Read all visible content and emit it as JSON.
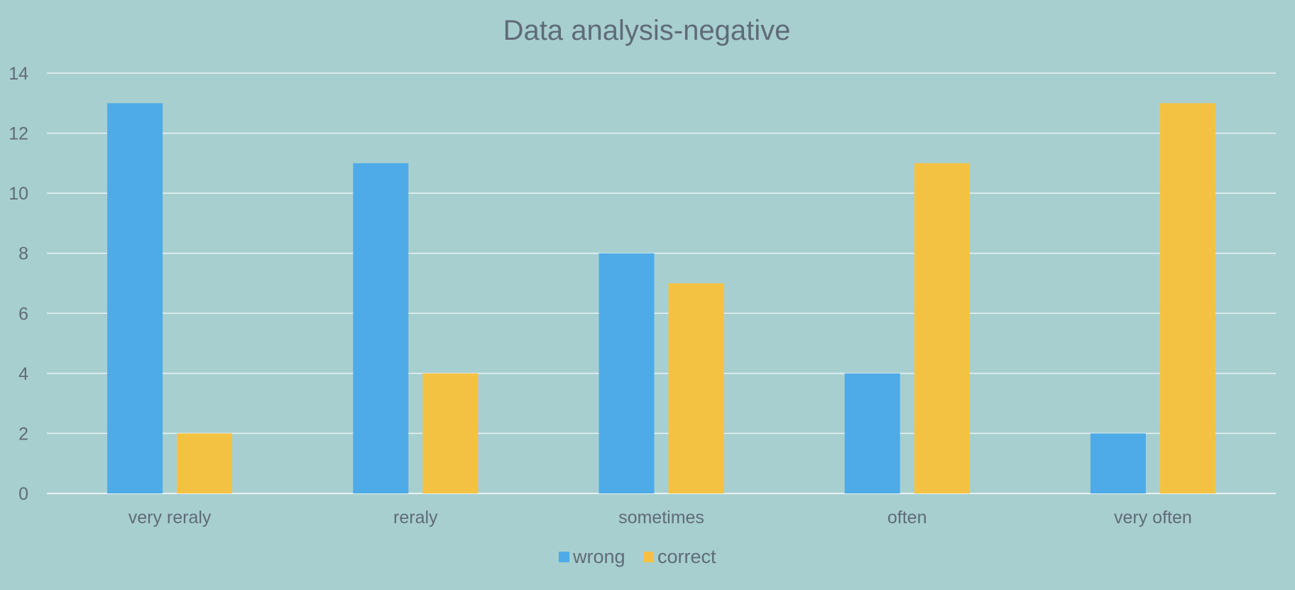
{
  "chart_data": {
    "type": "bar",
    "title": "Data analysis-negative",
    "xlabel": "",
    "ylabel": "",
    "categories": [
      "very reraly",
      "reraly",
      "sometimes",
      "often",
      "very often"
    ],
    "series": [
      {
        "name": "wrong",
        "values": [
          13,
          11,
          8,
          4,
          2
        ],
        "color": "#4eabe8"
      },
      {
        "name": "correct",
        "values": [
          2,
          4,
          7,
          11,
          13
        ],
        "color": "#f4c243"
      }
    ],
    "ylim": [
      0,
      14
    ],
    "yticks": [
      0,
      2,
      4,
      6,
      8,
      10,
      12,
      14
    ],
    "grid": true,
    "legend_position": "bottom"
  },
  "colors": {
    "background": "#a8cfd0",
    "text": "#5f6b78",
    "gridline": "#e9f2f2"
  }
}
